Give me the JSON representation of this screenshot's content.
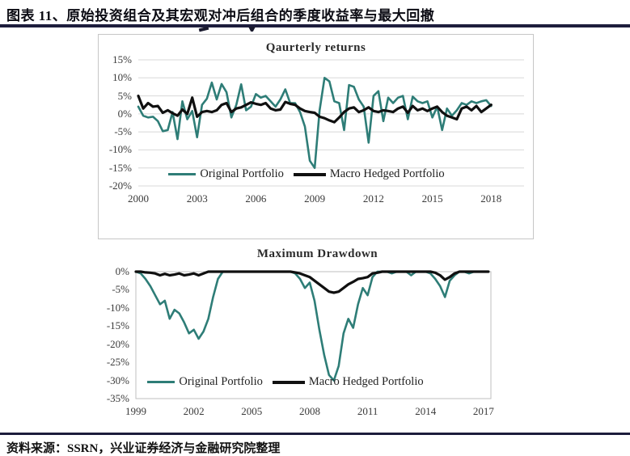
{
  "header": {
    "title": "图表 11、原始投资组合及其宏观对冲后组合的季度收益率与最大回撤"
  },
  "footer": {
    "source": "资料来源：SSRN，兴业证券经济与金融研究院整理"
  },
  "colors": {
    "teal": "#2E7D77",
    "black": "#101010",
    "grid": "#D8D8D8",
    "frame": "#BFBFBF",
    "rule": "#1D1D3C",
    "tick_text": "#3A3A3A"
  },
  "chart_data": [
    {
      "type": "line",
      "title": "Qaurterly returns",
      "x_start": 2000,
      "x_step": 0.25,
      "xlim": [
        2000,
        2019.68
      ],
      "ylim": [
        -20,
        15
      ],
      "x_ticks": [
        2000,
        2003,
        2006,
        2009,
        2012,
        2015,
        2018
      ],
      "y_ticks": [
        15,
        10,
        5,
        0,
        -5,
        -10,
        -15,
        -20
      ],
      "grid": true,
      "plot_border": false,
      "legend_position": "inside-bottom",
      "series": [
        {
          "name": "Original Portfolio",
          "color": "#2E7D77",
          "width": 2.6,
          "values": [
            2,
            -0.5,
            -1,
            -0.8,
            -2,
            -4.8,
            -4.5,
            0.5,
            -7,
            3.5,
            -1.5,
            0.8,
            -6.5,
            2.5,
            4.2,
            8.7,
            4.0,
            8.3,
            6.0,
            -1.0,
            2.5,
            8.2,
            1.0,
            2.0,
            5.5,
            4.5,
            5.0,
            3.5,
            2.0,
            4.0,
            6.8,
            3.0,
            3.0,
            0.5,
            -3.5,
            -13.0,
            -15.0,
            1.0,
            10.0,
            9.0,
            3.5,
            3.0,
            -4.5,
            8.0,
            7.5,
            4.0,
            2.0,
            -8.0,
            5.0,
            6.3,
            -2.0,
            4.5,
            3.0,
            4.5,
            5.0,
            -1.5,
            4.8,
            3.5,
            3.0,
            3.5,
            -1.0,
            2.0,
            -4.5,
            1.5,
            -0.5,
            1.0,
            3.0,
            2.5,
            3.5,
            3.0,
            3.5,
            3.8,
            2.2
          ]
        },
        {
          "name": "Macro Hedged Portfolio",
          "color": "#101010",
          "width": 3.2,
          "values": [
            5.0,
            1.5,
            3.0,
            2.0,
            2.2,
            0.3,
            1.0,
            0.2,
            -0.5,
            1.2,
            0.0,
            4.5,
            -0.8,
            0.5,
            0.8,
            0.5,
            1.0,
            2.5,
            3.0,
            0.5,
            1.5,
            1.8,
            2.5,
            3.2,
            2.8,
            2.5,
            3.0,
            1.5,
            1.0,
            1.2,
            3.3,
            2.8,
            2.5,
            1.5,
            0.8,
            0.5,
            0.3,
            -0.8,
            -1.2,
            -1.8,
            -2.3,
            -1.0,
            0.5,
            1.5,
            1.8,
            0.5,
            1.0,
            1.8,
            0.8,
            0.5,
            1.0,
            0.8,
            0.5,
            1.5,
            2.0,
            0.3,
            2.2,
            1.0,
            1.5,
            0.8,
            1.5,
            2.0,
            0.5,
            -0.5,
            -1.0,
            -1.5,
            1.5,
            2.0,
            1.0,
            2.2,
            0.5,
            1.5,
            2.5
          ]
        }
      ]
    },
    {
      "type": "line",
      "title": "Maximum Drawdown",
      "x_start": 1999,
      "x_step": 0.25,
      "xlim": [
        1999,
        2017.38
      ],
      "ylim": [
        -35,
        0
      ],
      "x_ticks": [
        1999,
        2002,
        2005,
        2008,
        2011,
        2014,
        2017
      ],
      "y_ticks": [
        0,
        -5,
        -10,
        -15,
        -20,
        -25,
        -30,
        -35
      ],
      "grid": false,
      "plot_border": true,
      "legend_position": "inside-bottom",
      "series": [
        {
          "name": "Original Portfolio",
          "color": "#2E7D77",
          "width": 2.6,
          "values": [
            0,
            -0.5,
            -2,
            -4,
            -6.5,
            -9,
            -8,
            -13,
            -10.5,
            -11.5,
            -14,
            -17,
            -16,
            -18.5,
            -16.5,
            -13,
            -7,
            -2,
            0,
            0,
            0,
            0,
            0,
            0,
            0,
            0,
            0,
            0,
            0,
            0,
            0,
            0,
            0,
            -0.5,
            -2,
            -4.5,
            -3,
            -8,
            -16,
            -23,
            -28.5,
            -30,
            -26,
            -17,
            -13,
            -15.5,
            -9,
            -4.5,
            -6.5,
            -1.5,
            0,
            0,
            0,
            -0.5,
            0,
            0,
            0,
            -1,
            0,
            0,
            0,
            -0.5,
            -2,
            -4,
            -7,
            -2.5,
            -1,
            0,
            0,
            -0.5,
            0,
            0,
            0,
            0
          ]
        },
        {
          "name": "Macro Hedged Portfolio",
          "color": "#101010",
          "width": 3.2,
          "values": [
            0,
            0,
            -0.2,
            -0.3,
            -0.5,
            -1,
            -0.6,
            -1,
            -0.8,
            -0.5,
            -1,
            -0.8,
            -0.5,
            -1,
            -0.5,
            0,
            0,
            0,
            0,
            0,
            0,
            0,
            0,
            0,
            0,
            0,
            0,
            0,
            0,
            0,
            0,
            0,
            0,
            -0.2,
            -0.5,
            -1,
            -1.5,
            -2.5,
            -3.5,
            -4.5,
            -5.5,
            -5.8,
            -5.5,
            -4.5,
            -3.5,
            -2.8,
            -2,
            -1.8,
            -1.5,
            -0.5,
            -0.3,
            0,
            0,
            0,
            0,
            0,
            0,
            0,
            0,
            0,
            0,
            0,
            -0.3,
            -1,
            -2.2,
            -1.5,
            -0.5,
            0,
            0,
            0,
            0,
            0,
            0,
            0
          ]
        }
      ]
    }
  ]
}
